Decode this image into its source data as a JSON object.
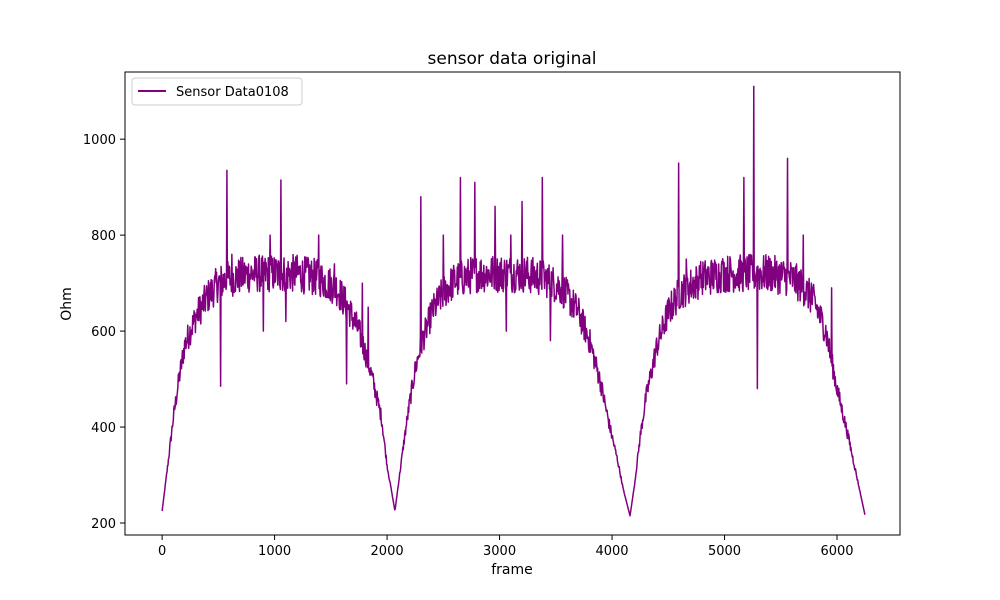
{
  "chart_data": {
    "type": "line",
    "title": "sensor data original",
    "xlabel": "frame",
    "ylabel": "Ohm",
    "xlim": [
      -330,
      6560
    ],
    "ylim": [
      175,
      1140
    ],
    "xticks": [
      0,
      1000,
      2000,
      3000,
      4000,
      5000,
      6000
    ],
    "yticks": [
      200,
      400,
      600,
      800,
      1000
    ],
    "grid": false,
    "legend_position": "top-left",
    "series": [
      {
        "name": "Sensor Data0108",
        "color": "#800080",
        "envelope_x": [
          0,
          50,
          100,
          150,
          200,
          300,
          400,
          500,
          600,
          800,
          1000,
          1200,
          1400,
          1550,
          1650,
          1750,
          1850,
          1950,
          2000,
          2070,
          2100,
          2150,
          2200,
          2250,
          2300,
          2400,
          2500,
          2600,
          2800,
          3000,
          3200,
          3400,
          3550,
          3700,
          3800,
          3900,
          3980,
          4050,
          4100,
          4160,
          4200,
          4250,
          4300,
          4400,
          4500,
          4600,
          4800,
          5000,
          5200,
          5400,
          5600,
          5700,
          5800,
          5900,
          6000,
          6100,
          6200,
          6250
        ],
        "envelope_y": [
          225,
          320,
          420,
          500,
          570,
          630,
          670,
          700,
          710,
          720,
          720,
          720,
          710,
          690,
          650,
          600,
          520,
          420,
          320,
          225,
          280,
          370,
          450,
          520,
          570,
          640,
          680,
          705,
          720,
          720,
          720,
          710,
          690,
          640,
          580,
          490,
          400,
          330,
          270,
          215,
          280,
          380,
          460,
          570,
          640,
          680,
          710,
          720,
          720,
          720,
          710,
          690,
          660,
          600,
          480,
          380,
          270,
          215
        ],
        "spikes": [
          [
            520,
            485
          ],
          [
            575,
            935
          ],
          [
            620,
            760
          ],
          [
            900,
            600
          ],
          [
            960,
            800
          ],
          [
            1055,
            915
          ],
          [
            1100,
            620
          ],
          [
            1300,
            750
          ],
          [
            1390,
            800
          ],
          [
            1530,
            740
          ],
          [
            1640,
            490
          ],
          [
            1780,
            700
          ],
          [
            1830,
            650
          ],
          [
            2300,
            880
          ],
          [
            2500,
            800
          ],
          [
            2650,
            920
          ],
          [
            2780,
            910
          ],
          [
            2960,
            860
          ],
          [
            3060,
            600
          ],
          [
            3100,
            800
          ],
          [
            3200,
            870
          ],
          [
            3380,
            920
          ],
          [
            3450,
            580
          ],
          [
            3560,
            800
          ],
          [
            4590,
            950
          ],
          [
            4660,
            750
          ],
          [
            4780,
            710
          ],
          [
            4980,
            740
          ],
          [
            5170,
            920
          ],
          [
            5260,
            1110
          ],
          [
            5290,
            480
          ],
          [
            5560,
            960
          ],
          [
            5700,
            800
          ],
          [
            5770,
            700
          ],
          [
            5950,
            690
          ]
        ]
      }
    ]
  }
}
